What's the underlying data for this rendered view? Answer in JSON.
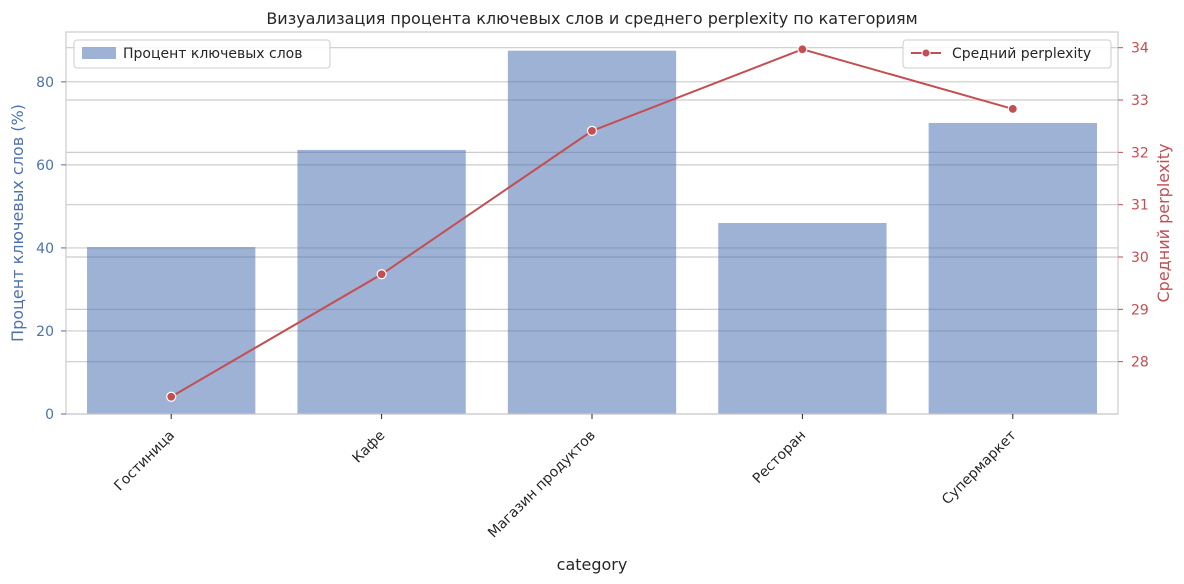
{
  "chart_data": {
    "type": "bar",
    "title": "Визуализация процента ключевых слов и среднего perplexity по категориям",
    "xlabel": "category",
    "ylabel": "Процент ключевых слов (%)",
    "y2label": "Средний perplexity",
    "categories": [
      "Гостиница",
      "Кафе",
      "Магазин продуктов",
      "Ресторан",
      "Супермаркет"
    ],
    "series": [
      {
        "name": "Процент ключевых слов",
        "type": "bar",
        "axis": "left",
        "values": [
          40.2,
          63.6,
          87.5,
          46.0,
          70.1
        ]
      },
      {
        "name": "Средний perplexity",
        "type": "line",
        "axis": "right",
        "values": [
          27.33,
          29.67,
          32.41,
          33.97,
          32.83
        ]
      }
    ],
    "ylim": [
      0,
      92
    ],
    "y2lim": [
      27.0,
      34.3
    ],
    "yticks": [
      0,
      20,
      40,
      60,
      80
    ],
    "y2ticks": [
      28,
      29,
      30,
      31,
      32,
      33,
      34
    ],
    "grid": true,
    "legend_left_position": "top-left",
    "legend_right_position": "top-right",
    "colors": {
      "bar": "#4c72b0",
      "line": "#c44e52",
      "left_axis": "#4c72b0",
      "right_axis": "#c44e52",
      "grid": "#cccccc",
      "frame": "#cccccc",
      "text": "#262626"
    }
  }
}
